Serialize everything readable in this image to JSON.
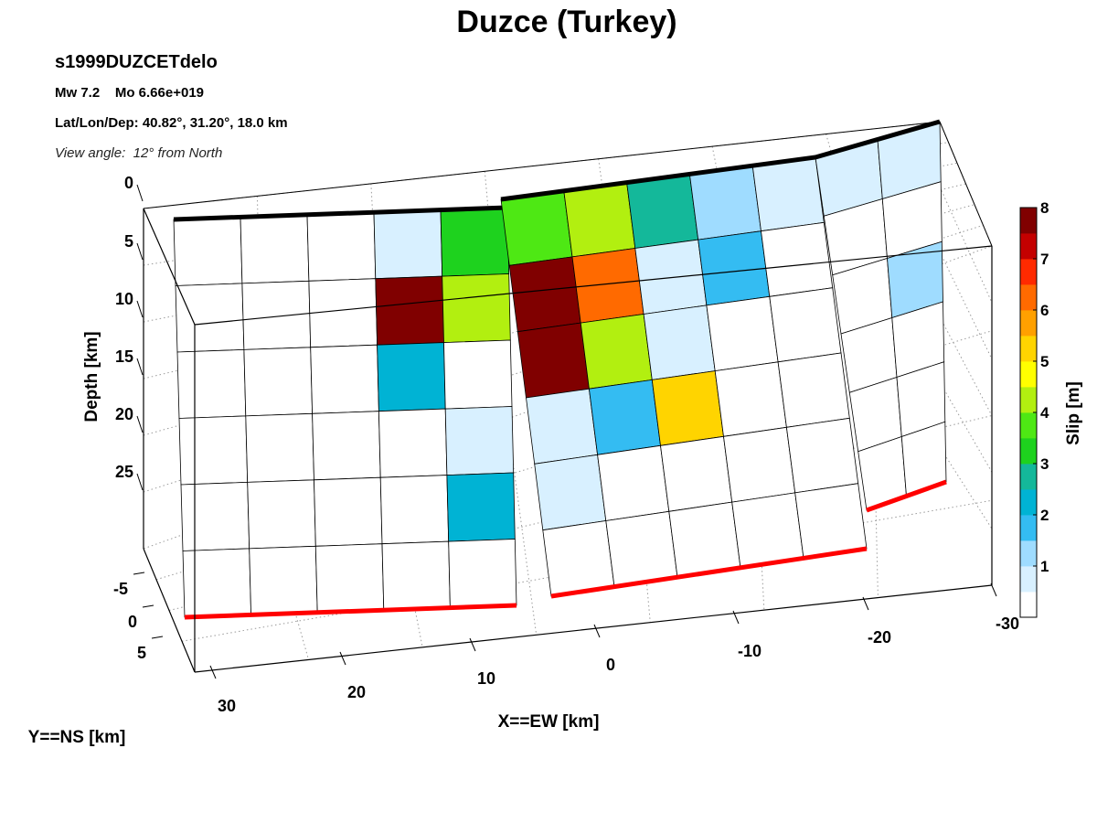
{
  "chart_data": {
    "type": "heatmap",
    "title": "Duzce (Turkey)",
    "event_id": "s1999DUZCETdelo",
    "magnitude_line": "Mw 7.2    Mo 6.66e+019",
    "location_line": "Lat/Lon/Dep: 40.82°, 31.20°, 18.0 km",
    "view_angle_line": "View angle:  12° from North",
    "xlabel": "X==EW [km]",
    "ylabel": "Y==NS [km]",
    "zlabel": "Depth [km]",
    "x_ticks": [
      "30",
      "20",
      "10",
      "0",
      "-10",
      "-20",
      "-30"
    ],
    "y_ticks": [
      "-5",
      "0",
      "5"
    ],
    "z_ticks": [
      "0",
      "5",
      "10",
      "15",
      "20",
      "25"
    ],
    "colorbar": {
      "label": "Slip [m]",
      "range": [
        0,
        8
      ],
      "ticks": [
        "1",
        "2",
        "3",
        "4",
        "5",
        "6",
        "7",
        "8"
      ],
      "colors": [
        "#ffffff",
        "#d8f0ff",
        "#9fdcff",
        "#34bcf2",
        "#00b3d4",
        "#14b89a",
        "#1ed21e",
        "#4ee814",
        "#b2ef10",
        "#ffff00",
        "#ffd400",
        "#ffa000",
        "#ff6a00",
        "#ff2a00",
        "#c40000",
        "#800000"
      ]
    },
    "segments": [
      {
        "rows": 6,
        "cols": 5,
        "slip_m": [
          [
            0,
            0,
            0,
            0.8,
            3.2
          ],
          [
            0,
            0,
            0,
            8.0,
            4.3
          ],
          [
            0,
            0,
            0,
            2.1,
            0
          ],
          [
            0,
            0,
            0,
            0,
            0.3
          ],
          [
            0,
            0,
            0,
            0,
            2.0
          ],
          [
            0,
            0,
            0,
            0,
            0
          ]
        ]
      },
      {
        "rows": 6,
        "cols": 5,
        "slip_m": [
          [
            3.6,
            4.0,
            2.9,
            1.3,
            0.9
          ],
          [
            8.0,
            6.2,
            0.4,
            1.7,
            0
          ],
          [
            8.0,
            4.2,
            0.8,
            0,
            0
          ],
          [
            0.5,
            1.5,
            5.2,
            0,
            0
          ],
          [
            0.8,
            0,
            0,
            0,
            0
          ],
          [
            0,
            0,
            0,
            0,
            0
          ]
        ]
      },
      {
        "rows": 6,
        "cols": 2,
        "slip_m": [
          [
            0.4,
            0.3
          ],
          [
            0,
            0
          ],
          [
            0,
            1.1
          ],
          [
            0,
            0
          ],
          [
            0,
            0
          ],
          [
            0,
            0
          ]
        ]
      }
    ]
  }
}
